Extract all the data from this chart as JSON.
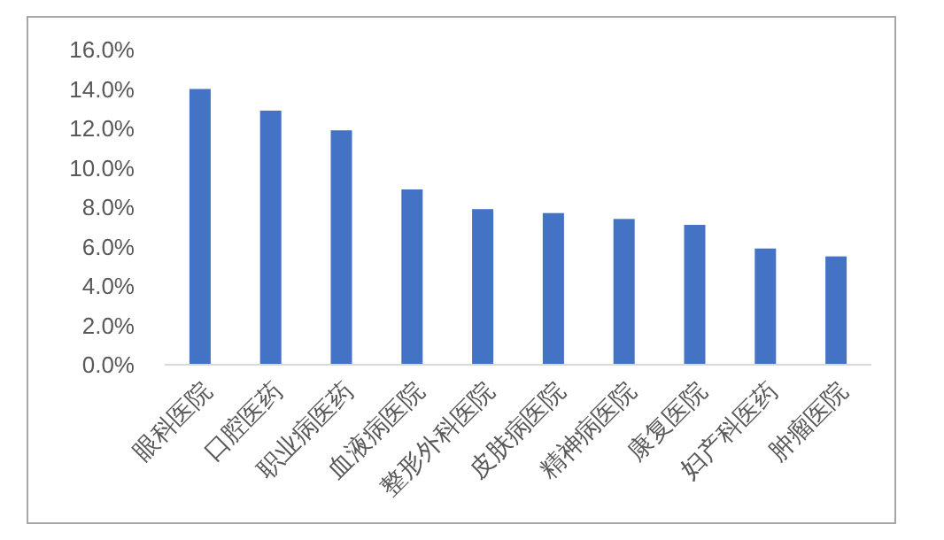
{
  "chart_data": {
    "type": "bar",
    "categories": [
      "眼科医院",
      "口腔医药",
      "职业病医药",
      "血液病医院",
      "整形外科医院",
      "皮肤病医院",
      "精神病医院",
      "康复医院",
      "妇产科医药",
      "肿瘤医院"
    ],
    "values": [
      14.0,
      12.9,
      11.9,
      8.9,
      7.9,
      7.7,
      7.4,
      7.1,
      5.9,
      5.5
    ],
    "color": "#4472c4",
    "ylim": [
      0,
      16
    ],
    "yticks": [
      {
        "value": 0,
        "label": "0.0%"
      },
      {
        "value": 2,
        "label": "2.0%"
      },
      {
        "value": 4,
        "label": "4.0%"
      },
      {
        "value": 6,
        "label": "6.0%"
      },
      {
        "value": 8,
        "label": "8.0%"
      },
      {
        "value": 10,
        "label": "10.0%"
      },
      {
        "value": 12,
        "label": "12.0%"
      },
      {
        "value": 14,
        "label": "14.0%"
      },
      {
        "value": 16,
        "label": "16.0%"
      }
    ],
    "grid": false
  }
}
